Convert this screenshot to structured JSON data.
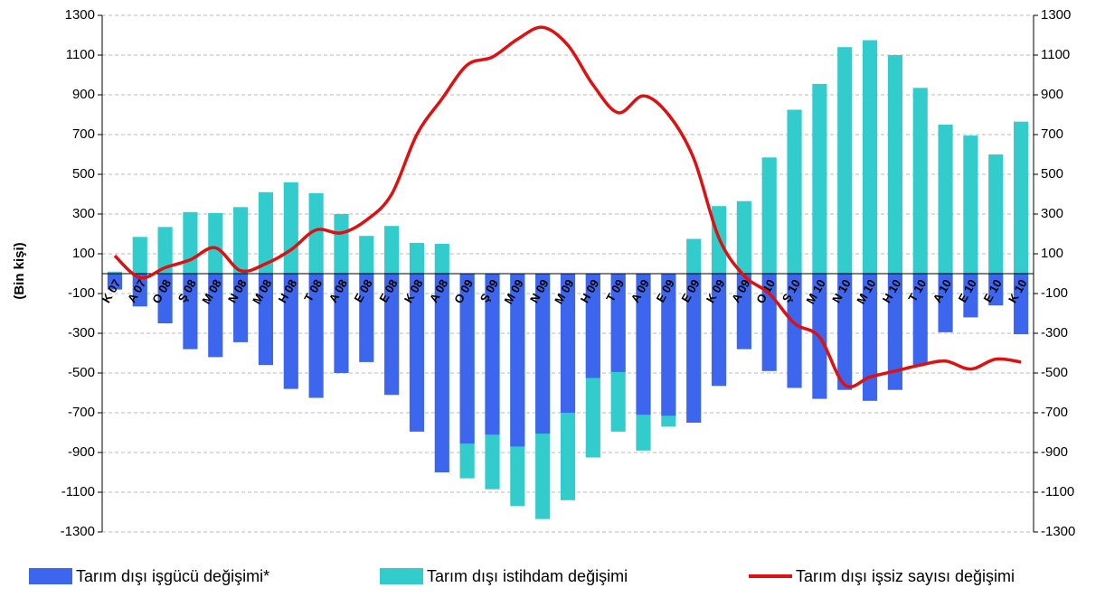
{
  "chart_data": {
    "type": "bar_line",
    "ylabel": "(Bin kişi)",
    "categories": [
      "K 07",
      "A 07",
      "O 08",
      "Ş 08",
      "M 08",
      "N 08",
      "M 08",
      "H 08",
      "T 08",
      "A 08",
      "E 08",
      "E 08",
      "K 08",
      "A 08",
      "O 09",
      "Ş 09",
      "M 09",
      "N 09",
      "M 09",
      "H 09",
      "T 09",
      "A 09",
      "E 09",
      "E 09",
      "K 09",
      "A 09",
      "O 10",
      "Ş 10",
      "M 10",
      "N 10",
      "M 10",
      "H 10",
      "T 10",
      "A 10",
      "E 10",
      "E 10",
      "K 10"
    ],
    "series": [
      {
        "name": "Tarım dışı istihdam değişimi",
        "type": "bar",
        "color": "#33cccc",
        "values": [
          10,
          185,
          235,
          310,
          305,
          335,
          410,
          460,
          405,
          300,
          190,
          240,
          155,
          150,
          -1030,
          -1085,
          -1170,
          -1235,
          -1140,
          -925,
          -795,
          -890,
          -770,
          175,
          340,
          365,
          585,
          825,
          955,
          1140,
          1175,
          1100,
          935,
          750,
          695,
          600,
          765
        ]
      },
      {
        "name": "Tarım dışı işgücü değişimi*",
        "type": "bar",
        "color": "#3d66ee",
        "values": [
          -80,
          -165,
          -250,
          -380,
          -420,
          -345,
          -460,
          -580,
          -625,
          -500,
          -445,
          -610,
          -795,
          -1000,
          -855,
          -810,
          -870,
          -805,
          -700,
          -525,
          -495,
          -710,
          -715,
          -750,
          -565,
          -380,
          -490,
          -575,
          -630,
          -585,
          -640,
          -585,
          -460,
          -295,
          -220,
          -160,
          -305
        ]
      },
      {
        "name": "Tarım dışı işsiz sayısı değişimi",
        "type": "line",
        "color": "#dd1111",
        "axis": "y2",
        "values": [
          90,
          -20,
          30,
          70,
          130,
          15,
          50,
          120,
          220,
          205,
          270,
          400,
          700,
          880,
          1050,
          1090,
          1180,
          1240,
          1150,
          950,
          810,
          895,
          800,
          580,
          180,
          -10,
          -100,
          -250,
          -320,
          -560,
          -520,
          -490,
          -460,
          -440,
          -480,
          -430,
          -445
        ]
      }
    ],
    "legend_order": [
      1,
      0,
      2
    ],
    "ylim": [
      -1300,
      1300
    ],
    "yticks": [
      -1300,
      -1100,
      -900,
      -700,
      -500,
      -300,
      -100,
      100,
      300,
      500,
      700,
      900,
      1100,
      1300
    ],
    "y2lim": [
      -1300,
      1300
    ],
    "y2ticks": [
      -1300,
      -1100,
      -900,
      -700,
      -500,
      -300,
      -100,
      100,
      300,
      500,
      700,
      900,
      1100,
      1300
    ],
    "grid": true
  }
}
